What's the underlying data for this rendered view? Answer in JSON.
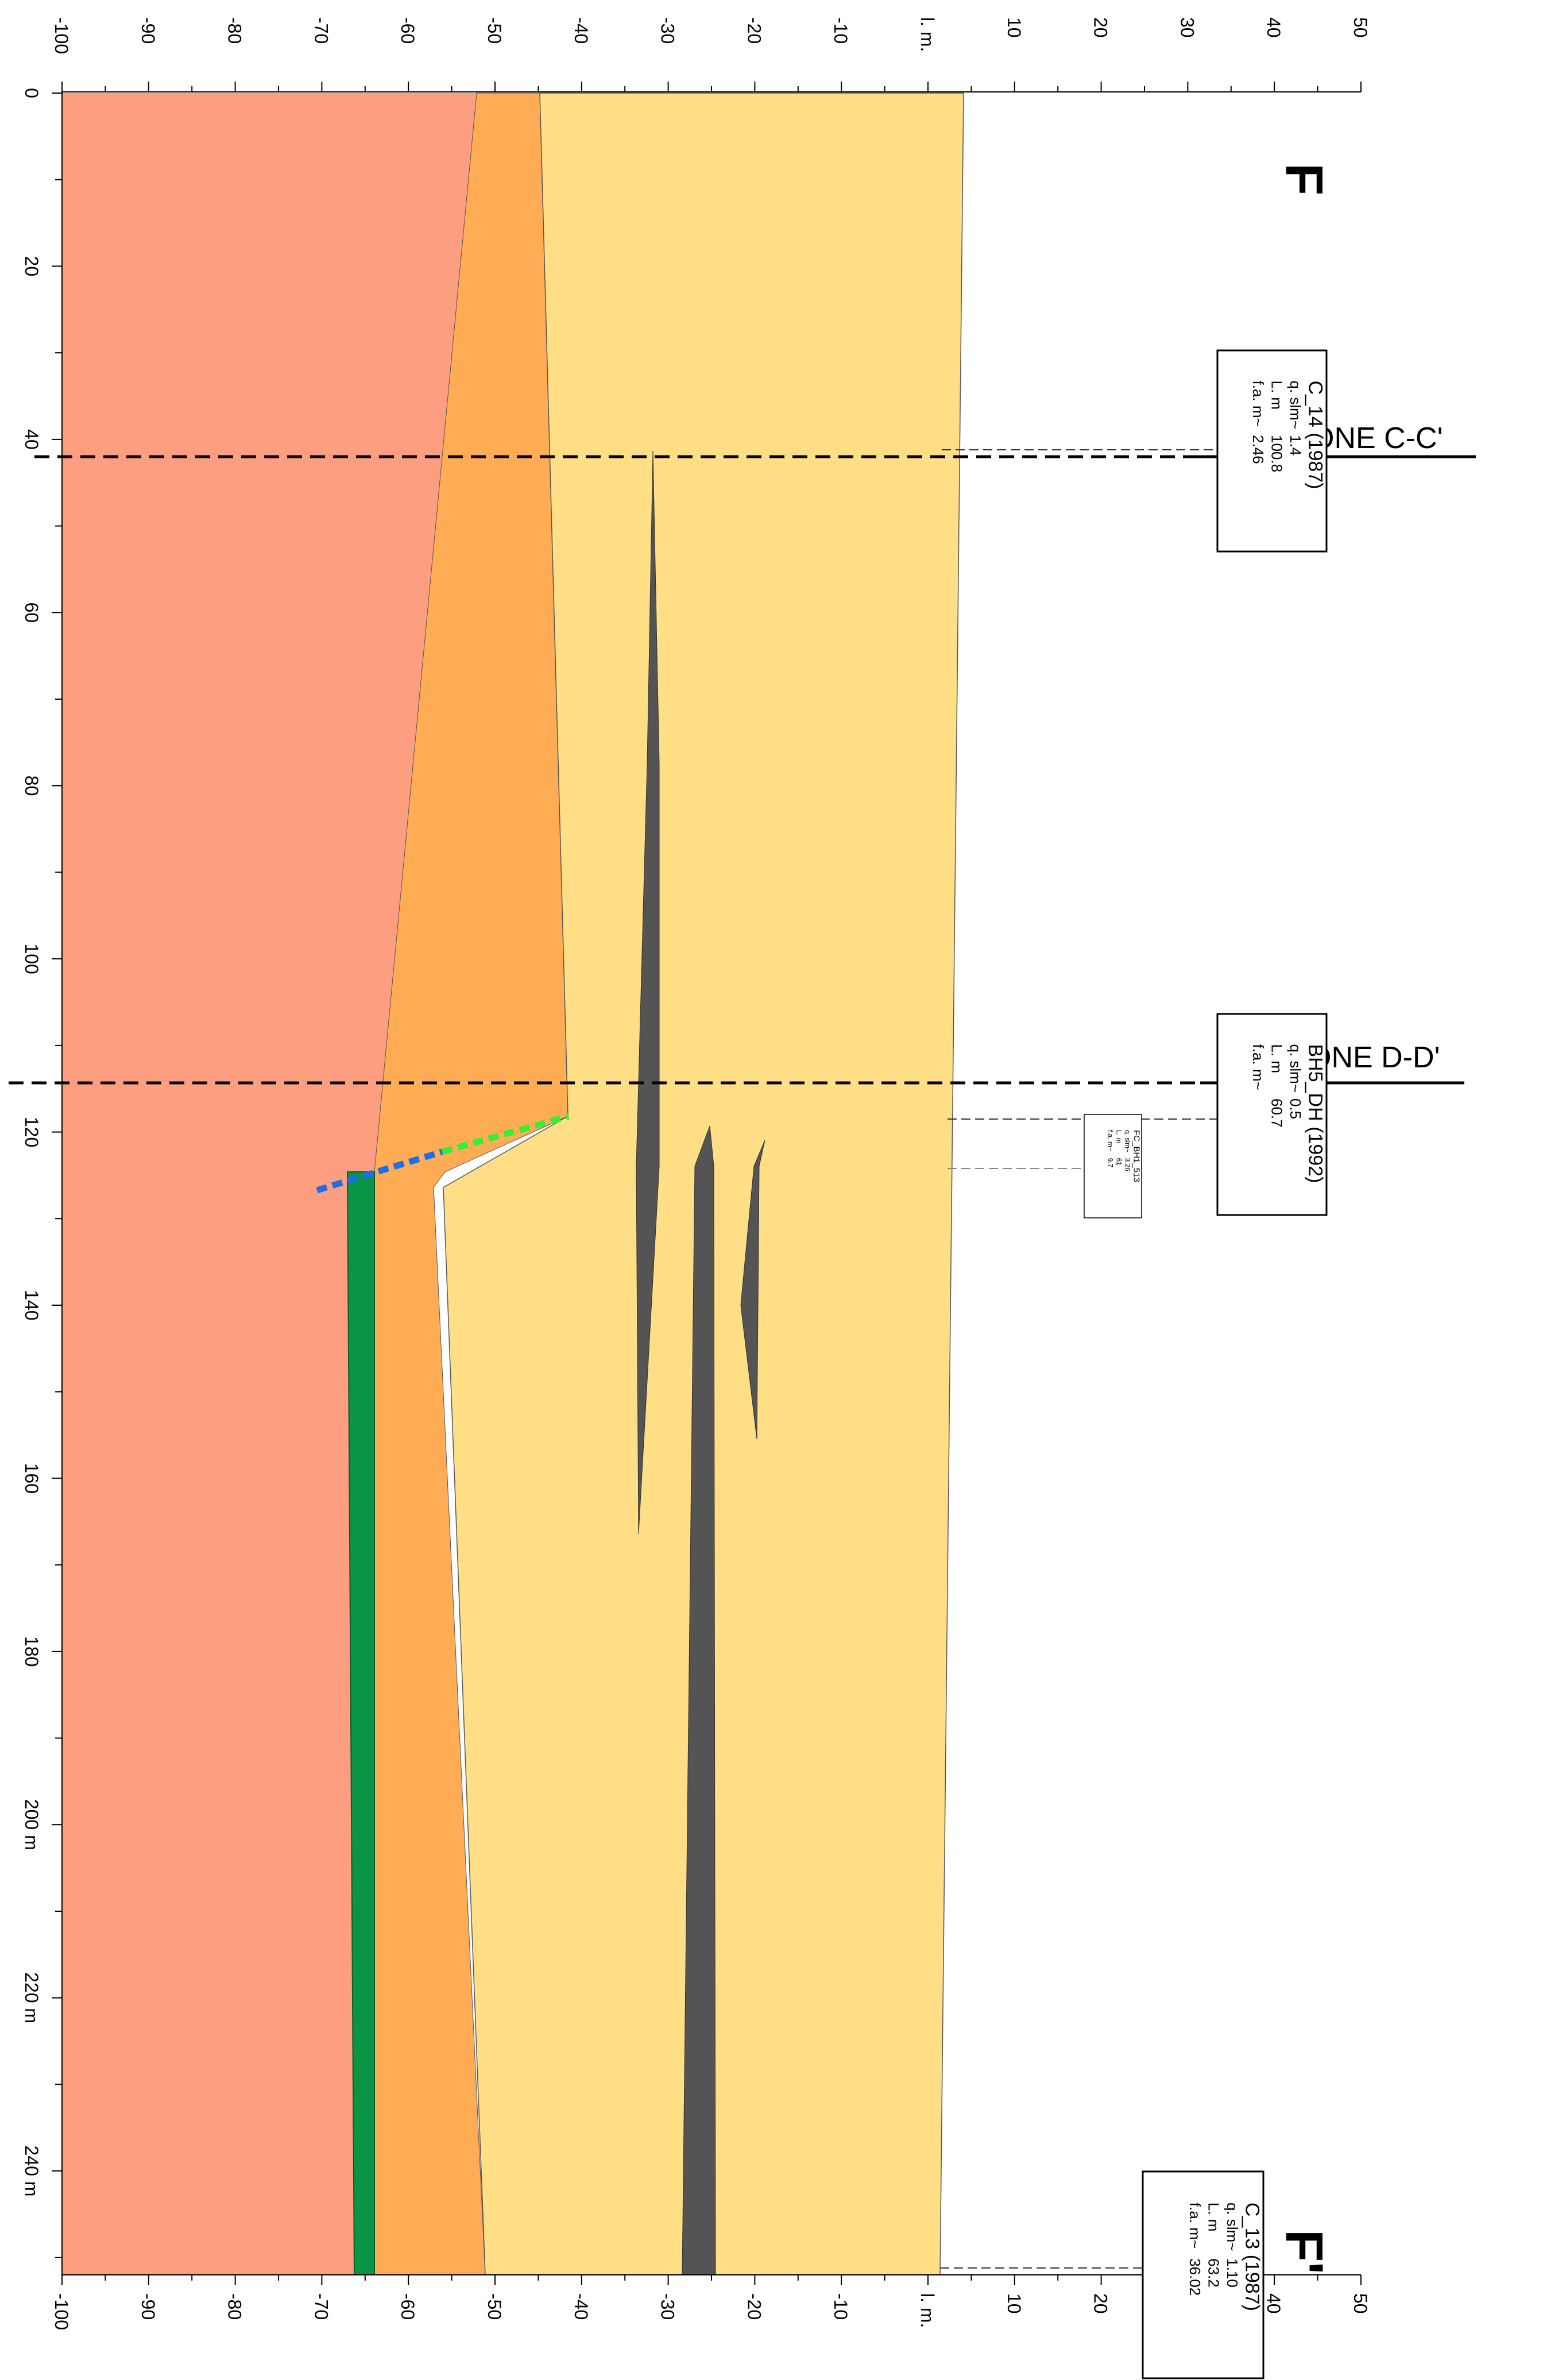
{
  "section": {
    "start_label": "F",
    "end_label": "F'",
    "top_axis_labels": [
      "-100",
      "-90",
      "-80",
      "-70",
      "-60",
      "-50",
      "-40",
      "-30",
      "-20",
      "-10",
      "l. m.",
      "10",
      "20",
      "30",
      "40",
      "50"
    ],
    "bottom_axis_labels": [
      "-100",
      "-90",
      "-80",
      "-70",
      "-60",
      "-50",
      "-40",
      "-30",
      "-20",
      "-10",
      "l. m.",
      "10",
      "20",
      "30",
      "40",
      "50"
    ],
    "distance_labels": [
      "0",
      "20",
      "40",
      "60",
      "80",
      "100",
      "120",
      "140",
      "160",
      "180",
      "200 m",
      "220 m",
      "240 m"
    ],
    "colors": {
      "deep_unit": "#fe9e80",
      "middle_unit": "#ffac55",
      "upper_unit": "#ffde85",
      "lens": "#545454",
      "green_layer": "#0a9446",
      "fault_blue": "#1d6fe8",
      "fault_green": "#3bed38"
    }
  },
  "cross_sections": [
    {
      "label": "SEZIONE C-C'"
    },
    {
      "label": "SEZIONE D-D'"
    }
  ],
  "boreholes": [
    {
      "id": "C_14 (1987)",
      "rows": [
        {
          "k": "q. slm~",
          "v": "1.4"
        },
        {
          "k": "L. m",
          "v": "100.8"
        },
        {
          "k": "f.a. m~",
          "v": "2.46"
        }
      ]
    },
    {
      "id": "BH5_DH (1992)",
      "rows": [
        {
          "k": "q. slm~",
          "v": "0.5"
        },
        {
          "k": "L. m",
          "v": "60.7"
        },
        {
          "k": "f.a. m~",
          "v": ""
        }
      ]
    },
    {
      "id": "FC_BH1_513",
      "rows": [
        {
          "k": "q. slm~",
          "v": "3.26"
        },
        {
          "k": "L. m",
          "v": "61"
        },
        {
          "k": "f.a. m~",
          "v": "9.7"
        }
      ]
    },
    {
      "id": "C_13 (1987)",
      "rows": [
        {
          "k": "q. slm~",
          "v": "1.10"
        },
        {
          "k": "L. m",
          "v": "63.2"
        },
        {
          "k": "f.a. m~",
          "v": "36.02"
        }
      ]
    }
  ]
}
